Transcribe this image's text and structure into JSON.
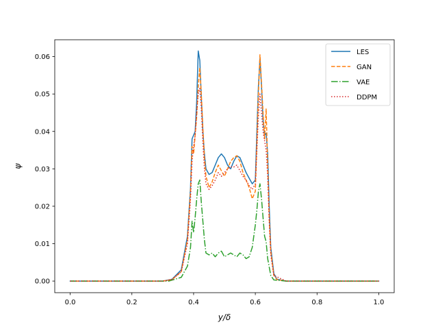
{
  "chart_data": {
    "type": "line",
    "xlabel": "y/δ",
    "ylabel": "ψ",
    "xlim": [
      -0.05,
      1.05
    ],
    "ylim": [
      -0.0031,
      0.0645
    ],
    "grid": false,
    "legend_position": "top-right",
    "xticks": [
      0.0,
      0.2,
      0.4,
      0.6,
      0.8,
      1.0
    ],
    "xtick_labels": [
      "0.0",
      "0.2",
      "0.4",
      "0.6",
      "0.8",
      "1.0"
    ],
    "yticks": [
      0.0,
      0.01,
      0.02,
      0.03,
      0.04,
      0.05,
      0.06
    ],
    "ytick_labels": [
      "0.00",
      "0.01",
      "0.02",
      "0.03",
      "0.04",
      "0.05",
      "0.06"
    ],
    "series": [
      {
        "name": "LES",
        "color": "#1f77b4",
        "style": "solid",
        "x": [
          0.0,
          0.3,
          0.33,
          0.36,
          0.38,
          0.39,
          0.395,
          0.405,
          0.41,
          0.415,
          0.42,
          0.425,
          0.43,
          0.435,
          0.44,
          0.45,
          0.46,
          0.47,
          0.48,
          0.49,
          0.5,
          0.51,
          0.52,
          0.53,
          0.54,
          0.55,
          0.56,
          0.57,
          0.58,
          0.59,
          0.6,
          0.605,
          0.61,
          0.615,
          0.62,
          0.625,
          0.63,
          0.635,
          0.64,
          0.645,
          0.65,
          0.66,
          0.67,
          0.7,
          1.0
        ],
        "y": [
          0.0,
          0.0,
          0.0005,
          0.003,
          0.012,
          0.025,
          0.038,
          0.04,
          0.048,
          0.0615,
          0.059,
          0.049,
          0.04,
          0.034,
          0.03,
          0.0285,
          0.029,
          0.031,
          0.033,
          0.034,
          0.033,
          0.031,
          0.03,
          0.032,
          0.0335,
          0.033,
          0.031,
          0.029,
          0.0275,
          0.026,
          0.027,
          0.04,
          0.052,
          0.0595,
          0.052,
          0.043,
          0.039,
          0.0395,
          0.034,
          0.02,
          0.009,
          0.002,
          0.0005,
          0.0,
          0.0
        ]
      },
      {
        "name": "GAN",
        "color": "#ff7f0e",
        "style": "dashed",
        "x": [
          0.0,
          0.3,
          0.33,
          0.36,
          0.38,
          0.39,
          0.395,
          0.4,
          0.405,
          0.41,
          0.415,
          0.42,
          0.425,
          0.43,
          0.435,
          0.44,
          0.45,
          0.46,
          0.47,
          0.48,
          0.49,
          0.5,
          0.51,
          0.52,
          0.53,
          0.54,
          0.55,
          0.56,
          0.57,
          0.58,
          0.59,
          0.6,
          0.605,
          0.61,
          0.615,
          0.62,
          0.625,
          0.63,
          0.635,
          0.64,
          0.645,
          0.65,
          0.66,
          0.67,
          0.7,
          1.0
        ],
        "y": [
          0.0,
          0.0,
          0.0004,
          0.0025,
          0.011,
          0.024,
          0.036,
          0.034,
          0.039,
          0.044,
          0.052,
          0.057,
          0.05,
          0.041,
          0.033,
          0.028,
          0.025,
          0.0265,
          0.029,
          0.031,
          0.0295,
          0.028,
          0.03,
          0.032,
          0.033,
          0.0335,
          0.032,
          0.029,
          0.027,
          0.025,
          0.022,
          0.024,
          0.037,
          0.05,
          0.0605,
          0.053,
          0.045,
          0.038,
          0.046,
          0.031,
          0.017,
          0.008,
          0.0015,
          0.0004,
          0.0,
          0.0
        ]
      },
      {
        "name": "VAE",
        "color": "#2ca02c",
        "style": "dashdot",
        "x": [
          0.0,
          0.32,
          0.36,
          0.38,
          0.39,
          0.395,
          0.4,
          0.405,
          0.41,
          0.415,
          0.42,
          0.425,
          0.43,
          0.435,
          0.44,
          0.45,
          0.46,
          0.47,
          0.48,
          0.49,
          0.5,
          0.51,
          0.52,
          0.53,
          0.54,
          0.55,
          0.56,
          0.57,
          0.58,
          0.59,
          0.6,
          0.605,
          0.61,
          0.615,
          0.62,
          0.625,
          0.63,
          0.635,
          0.64,
          0.65,
          0.66,
          0.7,
          1.0
        ],
        "y": [
          0.0,
          0.0,
          0.001,
          0.004,
          0.009,
          0.016,
          0.013,
          0.017,
          0.022,
          0.026,
          0.027,
          0.021,
          0.016,
          0.011,
          0.0075,
          0.007,
          0.0075,
          0.0065,
          0.0075,
          0.008,
          0.0065,
          0.007,
          0.0075,
          0.007,
          0.0065,
          0.0075,
          0.007,
          0.006,
          0.0065,
          0.009,
          0.015,
          0.019,
          0.024,
          0.026,
          0.022,
          0.017,
          0.012,
          0.0105,
          0.006,
          0.0015,
          0.0003,
          0.0,
          0.0
        ]
      },
      {
        "name": "DDPM",
        "color": "#d62728",
        "style": "dotted",
        "x": [
          0.0,
          0.3,
          0.33,
          0.36,
          0.38,
          0.39,
          0.395,
          0.4,
          0.405,
          0.41,
          0.415,
          0.42,
          0.425,
          0.43,
          0.435,
          0.44,
          0.45,
          0.46,
          0.47,
          0.48,
          0.49,
          0.5,
          0.51,
          0.52,
          0.53,
          0.54,
          0.55,
          0.56,
          0.57,
          0.58,
          0.59,
          0.6,
          0.605,
          0.61,
          0.615,
          0.62,
          0.625,
          0.63,
          0.635,
          0.64,
          0.645,
          0.65,
          0.66,
          0.7,
          1.0
        ],
        "y": [
          0.0,
          0.0,
          0.0004,
          0.0025,
          0.01,
          0.022,
          0.032,
          0.036,
          0.039,
          0.045,
          0.05,
          0.0515,
          0.046,
          0.037,
          0.03,
          0.026,
          0.0245,
          0.0255,
          0.027,
          0.029,
          0.028,
          0.029,
          0.03,
          0.0305,
          0.0305,
          0.031,
          0.0295,
          0.028,
          0.027,
          0.0255,
          0.0245,
          0.026,
          0.035,
          0.044,
          0.05,
          0.045,
          0.04,
          0.0375,
          0.035,
          0.028,
          0.016,
          0.007,
          0.0015,
          0.0,
          0.0
        ]
      }
    ]
  }
}
